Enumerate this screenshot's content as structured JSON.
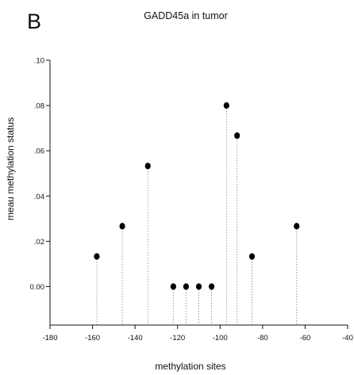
{
  "panel_letter": "B",
  "chart_data": {
    "type": "scatter",
    "style": "lollipop / dropped-line dot plot",
    "title": "GADD45a in tumor",
    "xlabel": "methylation sites",
    "ylabel": "meau methylation status",
    "xlim": [
      -180,
      -40
    ],
    "ylim": [
      -0.017,
      0.1
    ],
    "x_ticks": [
      -180,
      -160,
      -140,
      -120,
      -100,
      -80,
      -60,
      -40
    ],
    "x_tick_labels": [
      "-180",
      "-160",
      "-140",
      "-120",
      "-100",
      "-80",
      "-60",
      "-40"
    ],
    "y_ticks": [
      0,
      0.02,
      0.04,
      0.06,
      0.08,
      0.1
    ],
    "y_tick_labels": [
      "0.00",
      ".02",
      ".04",
      ".06",
      ".08",
      ".10"
    ],
    "grid": false,
    "legend": "none",
    "colors": {
      "marker": "#000000",
      "drop_line": "#777777",
      "axis": "#111111"
    },
    "points": [
      {
        "x": -158,
        "y": 0.0133
      },
      {
        "x": -146,
        "y": 0.0267
      },
      {
        "x": -134,
        "y": 0.0533
      },
      {
        "x": -122,
        "y": 0.0
      },
      {
        "x": -116,
        "y": 0.0
      },
      {
        "x": -110,
        "y": 0.0
      },
      {
        "x": -104,
        "y": 0.0
      },
      {
        "x": -97,
        "y": 0.08
      },
      {
        "x": -92,
        "y": 0.0667
      },
      {
        "x": -85,
        "y": 0.0133
      },
      {
        "x": -64,
        "y": 0.0267
      }
    ]
  }
}
